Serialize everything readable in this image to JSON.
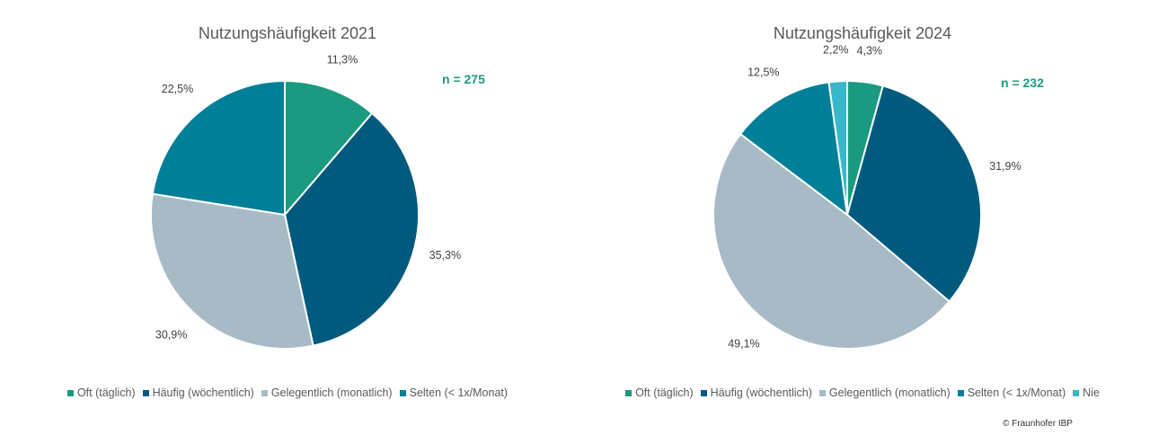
{
  "colors": {
    "oft": "#1a9a80",
    "haeufig": "#005a7e",
    "gelegentlich": "#a7bac6",
    "selten": "#007f99",
    "nie": "#36b8c8",
    "n_label": "#1a9a80"
  },
  "copyright": "© Fraunhofer IBP",
  "chart_data": [
    {
      "type": "pie",
      "title": "Nutzungshäufigkeit 2021",
      "n_label": "n = 275",
      "legend_position": "bottom",
      "slices": [
        {
          "name": "Oft (täglich)",
          "value": 11.3,
          "label": "11,3%",
          "color_key": "oft"
        },
        {
          "name": "Häufig (wöchentlich)",
          "value": 35.3,
          "label": "35,3%",
          "color_key": "haeufig"
        },
        {
          "name": "Gelegentlich (monatlich)",
          "value": 30.9,
          "label": "30,9%",
          "color_key": "gelegentlich"
        },
        {
          "name": "Selten (< 1x/Monat)",
          "value": 22.5,
          "label": "22,5%",
          "color_key": "selten"
        }
      ]
    },
    {
      "type": "pie",
      "title": "Nutzungshäufigkeit 2024",
      "n_label": "n = 232",
      "legend_position": "bottom",
      "slices": [
        {
          "name": "Oft (täglich)",
          "value": 4.3,
          "label": "4,3%",
          "color_key": "oft"
        },
        {
          "name": "Häufig (wöchentlich)",
          "value": 31.9,
          "label": "31,9%",
          "color_key": "haeufig"
        },
        {
          "name": "Gelegentlich (monatlich)",
          "value": 49.1,
          "label": "49,1%",
          "color_key": "gelegentlich"
        },
        {
          "name": "Selten (< 1x/Monat)",
          "value": 12.5,
          "label": "12,5%",
          "color_key": "selten"
        },
        {
          "name": "Nie",
          "value": 2.2,
          "label": "2,2%",
          "color_key": "nie"
        }
      ]
    }
  ]
}
